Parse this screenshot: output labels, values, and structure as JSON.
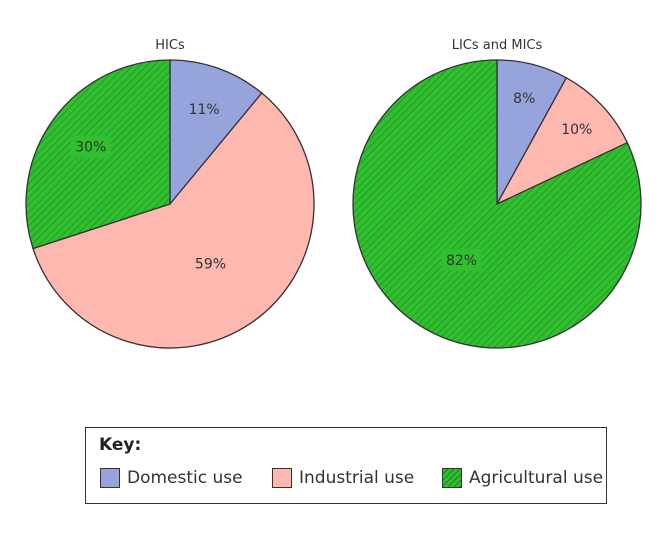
{
  "chart_data": [
    {
      "type": "pie",
      "title": "HICs",
      "categories": [
        "Domestic use",
        "Industrial use",
        "Agricultural use"
      ],
      "values": [
        11,
        59,
        30
      ],
      "labels": [
        "11%",
        "59%",
        "30%"
      ]
    },
    {
      "type": "pie",
      "title": "LICs and MICs",
      "categories": [
        "Domestic use",
        "Industrial use",
        "Agricultural use"
      ],
      "values": [
        8,
        10,
        82
      ],
      "labels": [
        "8%",
        "10%",
        "82%"
      ]
    }
  ],
  "legend": {
    "title": "Key:",
    "placement": "bottom",
    "items": [
      {
        "label": "Domestic use",
        "color": "#97a4dc",
        "pattern": "none"
      },
      {
        "label": "Industrial use",
        "color": "#ffb8b0",
        "pattern": "none"
      },
      {
        "label": "Agricultural use",
        "color": "#2fbf2f",
        "pattern": "diagonal-hatch"
      }
    ]
  },
  "colors": {
    "domestic": "#97a4dc",
    "industrial": "#ffb8b0",
    "agricultural": "#2fbf2f",
    "hatch": "#1e7f1e",
    "outline": "#333333"
  }
}
